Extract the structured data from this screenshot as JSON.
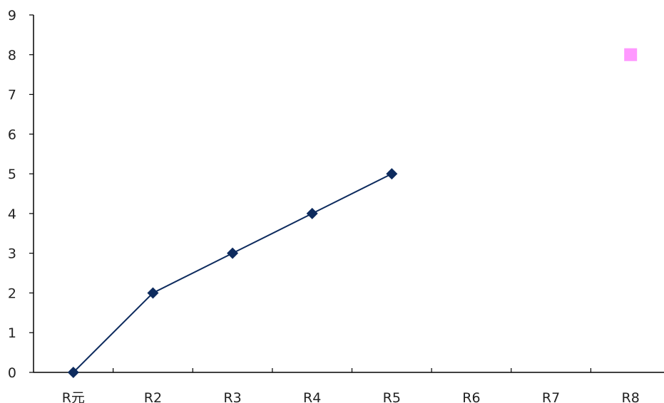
{
  "chart_data": {
    "type": "line",
    "categories": [
      "R元",
      "R2",
      "R3",
      "R4",
      "R5",
      "R6",
      "R7",
      "R8"
    ],
    "series": [
      {
        "values": [
          0,
          2,
          3,
          4,
          5,
          null,
          null,
          null
        ],
        "color": "#0d2b5e",
        "marker": "diamond",
        "line": true
      },
      {
        "values": [
          null,
          null,
          null,
          null,
          null,
          null,
          null,
          8
        ],
        "color": "#ff99ff",
        "marker": "square",
        "line": false
      }
    ],
    "ylim": [
      0,
      9
    ],
    "yticks": [
      0,
      1,
      2,
      3,
      4,
      5,
      6,
      7,
      8,
      9
    ],
    "grid": false,
    "title": "",
    "xlabel": "",
    "ylabel": ""
  }
}
